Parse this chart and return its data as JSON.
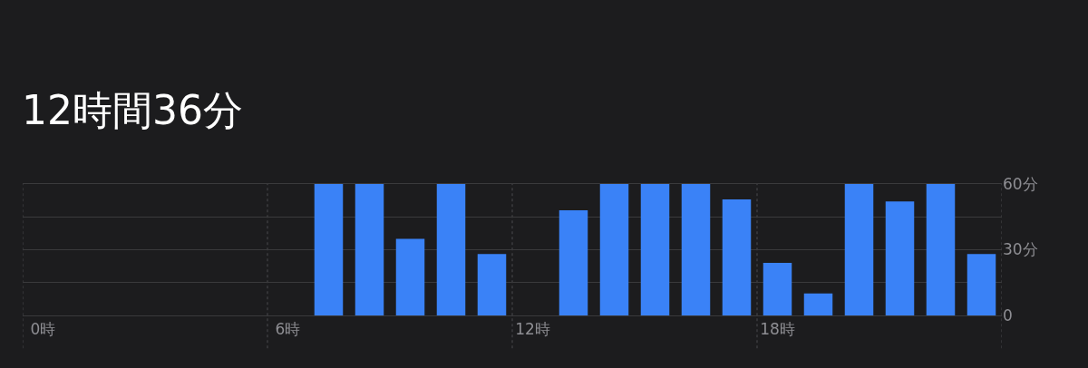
{
  "chart_data": {
    "type": "bar",
    "title": "12時間36分",
    "categories": [
      "0時",
      null,
      null,
      null,
      null,
      null,
      "6時",
      null,
      null,
      null,
      null,
      null,
      "12時",
      null,
      null,
      null,
      null,
      null,
      "18時",
      null,
      null,
      null,
      null,
      null
    ],
    "values": [
      0,
      0,
      0,
      0,
      0,
      0,
      0,
      60,
      60,
      35,
      60,
      28,
      0,
      48,
      60,
      60,
      60,
      53,
      24,
      10,
      60,
      52,
      60,
      28
    ],
    "color": "#3a82f7",
    "ylim": [
      0,
      60
    ],
    "yticks": [
      {
        "value": 0,
        "label": "0"
      },
      {
        "value": 15,
        "label": null
      },
      {
        "value": 30,
        "label": "30分"
      },
      {
        "value": 45,
        "label": null
      },
      {
        "value": 60,
        "label": "60分"
      }
    ],
    "grid": true
  }
}
